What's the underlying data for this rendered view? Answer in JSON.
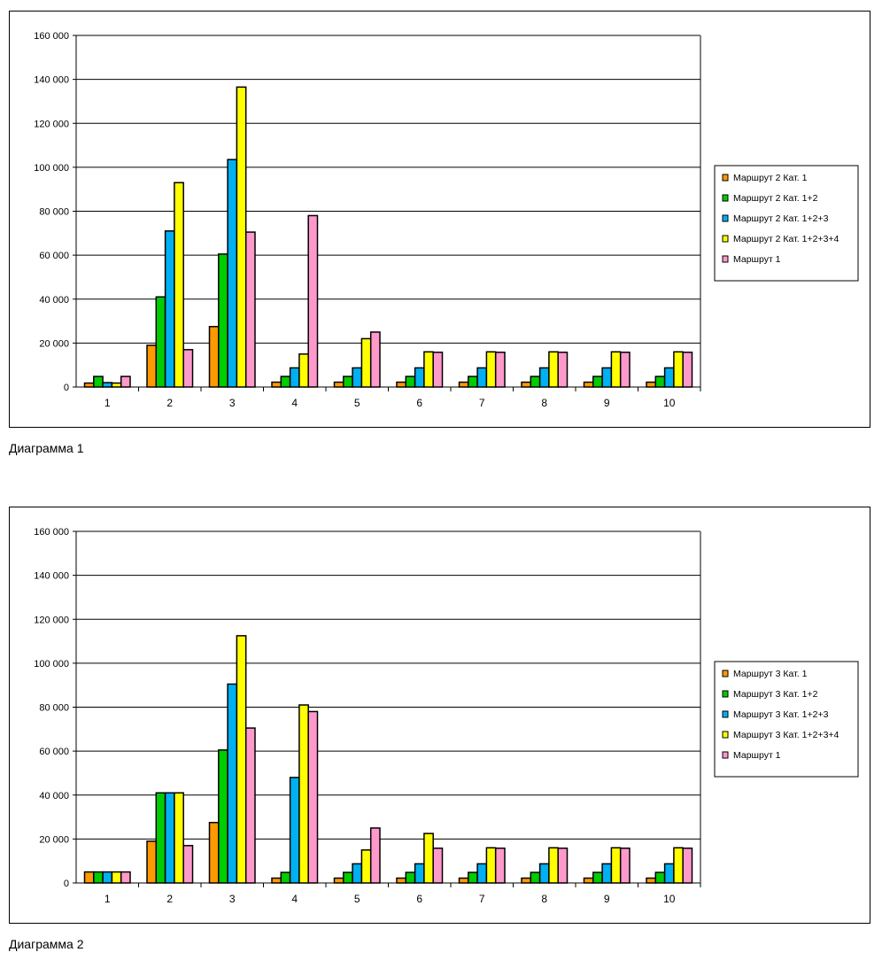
{
  "chart_data": [
    {
      "type": "bar",
      "categories": [
        "1",
        "2",
        "3",
        "4",
        "5",
        "6",
        "7",
        "8",
        "9",
        "10"
      ],
      "ylim": [
        0,
        160000
      ],
      "yticks": [
        "0",
        "20 000",
        "40 000",
        "60 000",
        "80 000",
        "100 000",
        "120 000",
        "140 000",
        "160 000"
      ],
      "yticks_values": [
        0,
        20000,
        40000,
        60000,
        80000,
        100000,
        120000,
        140000,
        160000
      ],
      "series": [
        {
          "name": "Маршрут 2 Кат. 1",
          "color": "#ff9900",
          "values": [
            1800,
            19000,
            27500,
            2200,
            2200,
            2200,
            2200,
            2200,
            2200,
            2200
          ]
        },
        {
          "name": "Маршрут 2 Кат. 1+2",
          "color": "#00cc00",
          "values": [
            4800,
            41000,
            60500,
            4800,
            4800,
            4800,
            4800,
            4800,
            4800,
            4800
          ]
        },
        {
          "name": "Маршрут 2 Кат. 1+2+3",
          "color": "#00b0f0",
          "values": [
            2000,
            71000,
            103500,
            8700,
            8700,
            8700,
            8700,
            8700,
            8700,
            8700
          ]
        },
        {
          "name": "Маршрут 2 Кат. 1+2+3+4",
          "color": "#ffff00",
          "values": [
            1800,
            93000,
            136500,
            15000,
            22000,
            16000,
            16000,
            16000,
            16000,
            16000
          ]
        },
        {
          "name": "Маршрут 1",
          "color": "#ff99cc",
          "values": [
            4800,
            17000,
            70500,
            78000,
            25000,
            15800,
            15800,
            15800,
            15800,
            15800
          ]
        }
      ],
      "legend_position": "right",
      "caption": "Диаграмма 1"
    },
    {
      "type": "bar",
      "categories": [
        "1",
        "2",
        "3",
        "4",
        "5",
        "6",
        "7",
        "8",
        "9",
        "10"
      ],
      "ylim": [
        0,
        160000
      ],
      "yticks": [
        "0",
        "20 000",
        "40 000",
        "60 000",
        "80 000",
        "100 000",
        "120 000",
        "140 000",
        "160 000"
      ],
      "yticks_values": [
        0,
        20000,
        40000,
        60000,
        80000,
        100000,
        120000,
        140000,
        160000
      ],
      "series": [
        {
          "name": "Маршрут 3 Кат. 1",
          "color": "#ff9900",
          "values": [
            5000,
            19000,
            27500,
            2200,
            2200,
            2200,
            2200,
            2200,
            2200,
            2200
          ]
        },
        {
          "name": "Маршрут 3 Кат. 1+2",
          "color": "#00cc00",
          "values": [
            5000,
            41000,
            60500,
            4800,
            4800,
            4800,
            4800,
            4800,
            4800,
            4800
          ]
        },
        {
          "name": "Маршрут 3 Кат. 1+2+3",
          "color": "#00b0f0",
          "values": [
            5000,
            41000,
            90500,
            48000,
            8700,
            8700,
            8700,
            8700,
            8700,
            8700
          ]
        },
        {
          "name": "Маршрут 3 Кат. 1+2+3+4",
          "color": "#ffff00",
          "values": [
            5000,
            41000,
            112500,
            81000,
            15000,
            22500,
            16000,
            16000,
            16000,
            16000
          ]
        },
        {
          "name": "Маршрут 1",
          "color": "#ff99cc",
          "values": [
            5000,
            17000,
            70500,
            78000,
            25000,
            15800,
            15800,
            15800,
            15800,
            15800
          ]
        }
      ],
      "legend_position": "right",
      "caption": "Диаграмма 2"
    }
  ]
}
